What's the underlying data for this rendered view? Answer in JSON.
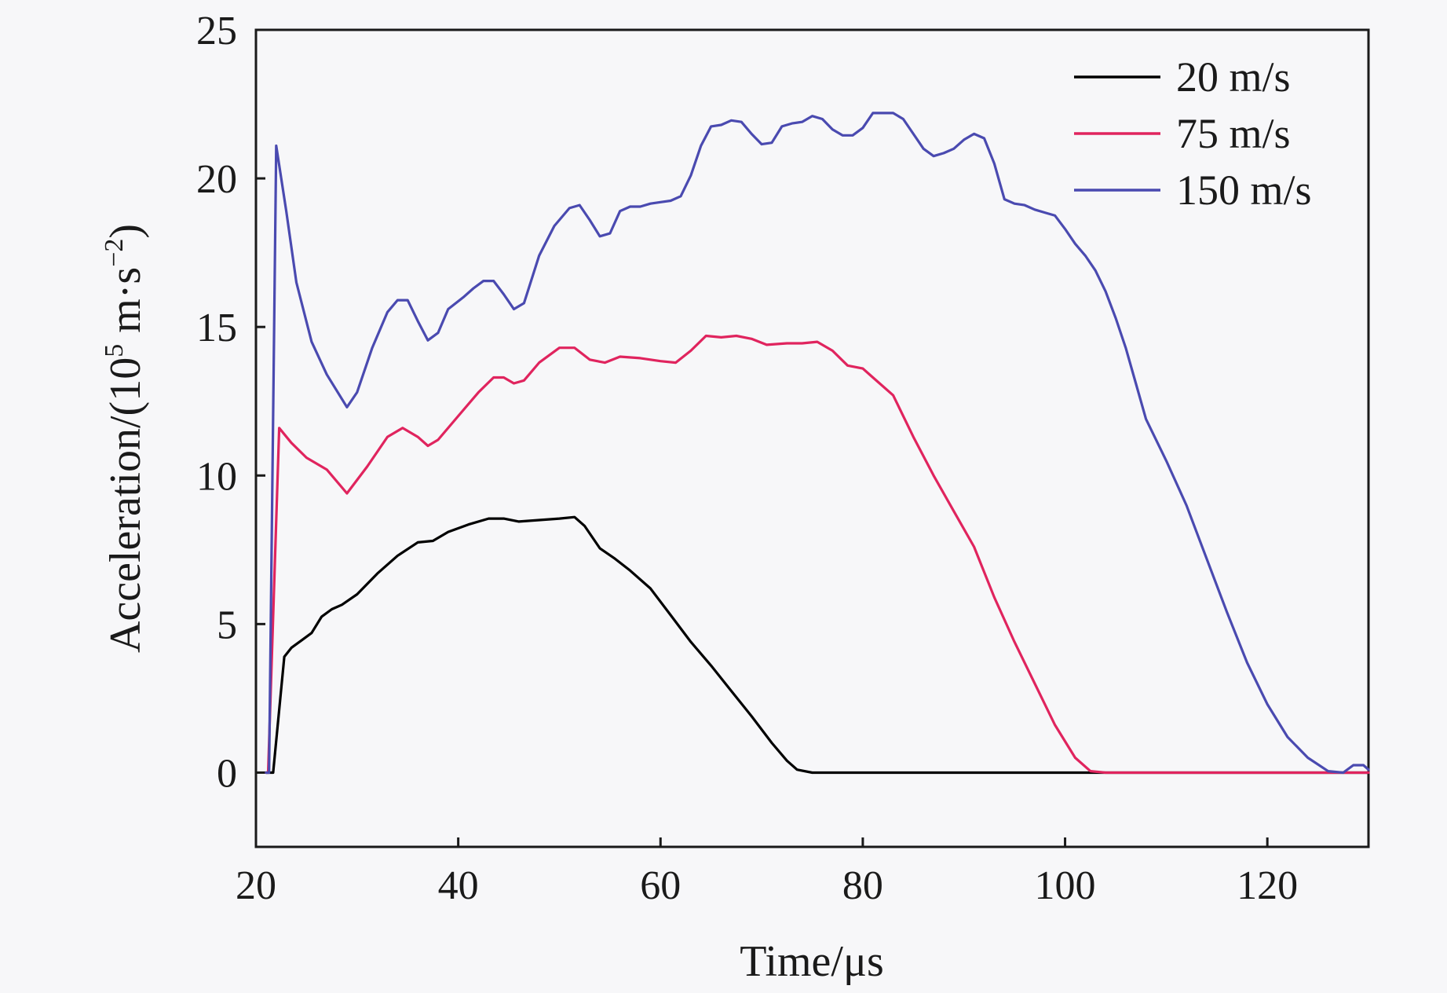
{
  "chart_data": {
    "type": "line",
    "xlabel": "Time/μs",
    "ylabel_prefix": "Acceleration/(10",
    "ylabel_exp1": "5",
    "ylabel_mid": " m·s",
    "ylabel_exp2": "−2",
    "ylabel_suffix": ")",
    "xlim": [
      20,
      130
    ],
    "ylim": [
      -2.5,
      25
    ],
    "xticks": [
      20,
      40,
      60,
      80,
      100,
      120
    ],
    "yticks": [
      0,
      5,
      10,
      15,
      20,
      25
    ],
    "legend_position": "top-right",
    "grid": false,
    "series": [
      {
        "name": "20 m/s",
        "color": "#000000",
        "points": [
          [
            21,
            0
          ],
          [
            21.7,
            0
          ],
          [
            22.8,
            3.9
          ],
          [
            23.5,
            4.2
          ],
          [
            24.5,
            4.45
          ],
          [
            25.5,
            4.7
          ],
          [
            26.5,
            5.25
          ],
          [
            27.5,
            5.5
          ],
          [
            28.5,
            5.65
          ],
          [
            30,
            6.0
          ],
          [
            32,
            6.7
          ],
          [
            34,
            7.3
          ],
          [
            36,
            7.75
          ],
          [
            37.5,
            7.8
          ],
          [
            39,
            8.1
          ],
          [
            41,
            8.35
          ],
          [
            43,
            8.55
          ],
          [
            44.5,
            8.55
          ],
          [
            46,
            8.45
          ],
          [
            48,
            8.5
          ],
          [
            50,
            8.55
          ],
          [
            51.5,
            8.6
          ],
          [
            52.5,
            8.3
          ],
          [
            54,
            7.55
          ],
          [
            55.5,
            7.2
          ],
          [
            57,
            6.8
          ],
          [
            59,
            6.2
          ],
          [
            61,
            5.3
          ],
          [
            63,
            4.4
          ],
          [
            65,
            3.6
          ],
          [
            67,
            2.75
          ],
          [
            69,
            1.9
          ],
          [
            71,
            1.0
          ],
          [
            72.5,
            0.4
          ],
          [
            73.5,
            0.1
          ],
          [
            75,
            0
          ],
          [
            130,
            0
          ]
        ]
      },
      {
        "name": "75 m/s",
        "color": "#e0245e",
        "points": [
          [
            21,
            0
          ],
          [
            21.2,
            0
          ],
          [
            22.3,
            11.6
          ],
          [
            23.5,
            11.1
          ],
          [
            25,
            10.6
          ],
          [
            27,
            10.2
          ],
          [
            29,
            9.4
          ],
          [
            31,
            10.3
          ],
          [
            33,
            11.3
          ],
          [
            34.5,
            11.6
          ],
          [
            36,
            11.3
          ],
          [
            37,
            11.0
          ],
          [
            38,
            11.2
          ],
          [
            40,
            12.0
          ],
          [
            42,
            12.8
          ],
          [
            43.5,
            13.3
          ],
          [
            44.5,
            13.3
          ],
          [
            45.5,
            13.1
          ],
          [
            46.5,
            13.2
          ],
          [
            48,
            13.8
          ],
          [
            50,
            14.3
          ],
          [
            51.5,
            14.3
          ],
          [
            53,
            13.9
          ],
          [
            54.5,
            13.8
          ],
          [
            56,
            14.0
          ],
          [
            58,
            13.95
          ],
          [
            60,
            13.85
          ],
          [
            61.5,
            13.8
          ],
          [
            63,
            14.2
          ],
          [
            64.5,
            14.7
          ],
          [
            66,
            14.65
          ],
          [
            67.5,
            14.7
          ],
          [
            69,
            14.6
          ],
          [
            70.5,
            14.4
          ],
          [
            72.5,
            14.45
          ],
          [
            74,
            14.45
          ],
          [
            75.5,
            14.5
          ],
          [
            77,
            14.2
          ],
          [
            78.5,
            13.7
          ],
          [
            80,
            13.6
          ],
          [
            81,
            13.3
          ],
          [
            83,
            12.7
          ],
          [
            85,
            11.3
          ],
          [
            87,
            10.0
          ],
          [
            89,
            8.8
          ],
          [
            91,
            7.6
          ],
          [
            93,
            5.9
          ],
          [
            95,
            4.4
          ],
          [
            97,
            3.0
          ],
          [
            99,
            1.6
          ],
          [
            101,
            0.5
          ],
          [
            102.5,
            0.05
          ],
          [
            104,
            0
          ],
          [
            130,
            0
          ]
        ]
      },
      {
        "name": "150 m/s",
        "color": "#4a4ab0",
        "points": [
          [
            21,
            0
          ],
          [
            21.3,
            0
          ],
          [
            22,
            21.1
          ],
          [
            23,
            18.9
          ],
          [
            24,
            16.5
          ],
          [
            25.5,
            14.5
          ],
          [
            27,
            13.4
          ],
          [
            29,
            12.3
          ],
          [
            30,
            12.8
          ],
          [
            31.5,
            14.3
          ],
          [
            33,
            15.5
          ],
          [
            34,
            15.9
          ],
          [
            35,
            15.9
          ],
          [
            36,
            15.2
          ],
          [
            37,
            14.55
          ],
          [
            38,
            14.8
          ],
          [
            39,
            15.6
          ],
          [
            40.5,
            16.0
          ],
          [
            41.5,
            16.3
          ],
          [
            42.5,
            16.55
          ],
          [
            43.5,
            16.55
          ],
          [
            44.5,
            16.1
          ],
          [
            45.5,
            15.6
          ],
          [
            46.5,
            15.8
          ],
          [
            48,
            17.4
          ],
          [
            49.5,
            18.4
          ],
          [
            51,
            19.0
          ],
          [
            52,
            19.1
          ],
          [
            53,
            18.6
          ],
          [
            54,
            18.05
          ],
          [
            55,
            18.15
          ],
          [
            56,
            18.9
          ],
          [
            57,
            19.05
          ],
          [
            58,
            19.05
          ],
          [
            59,
            19.15
          ],
          [
            60,
            19.2
          ],
          [
            61,
            19.25
          ],
          [
            62,
            19.4
          ],
          [
            63,
            20.1
          ],
          [
            64,
            21.1
          ],
          [
            65,
            21.75
          ],
          [
            66,
            21.8
          ],
          [
            67,
            21.95
          ],
          [
            68,
            21.9
          ],
          [
            69,
            21.5
          ],
          [
            70,
            21.15
          ],
          [
            71,
            21.2
          ],
          [
            72,
            21.75
          ],
          [
            73,
            21.85
          ],
          [
            74,
            21.9
          ],
          [
            75,
            22.1
          ],
          [
            76,
            22.0
          ],
          [
            77,
            21.65
          ],
          [
            78,
            21.45
          ],
          [
            79,
            21.45
          ],
          [
            80,
            21.7
          ],
          [
            81,
            22.2
          ],
          [
            82,
            22.2
          ],
          [
            83,
            22.2
          ],
          [
            84,
            22.0
          ],
          [
            85,
            21.5
          ],
          [
            86,
            21.0
          ],
          [
            87,
            20.75
          ],
          [
            88,
            20.85
          ],
          [
            89,
            21.0
          ],
          [
            90,
            21.3
          ],
          [
            91,
            21.5
          ],
          [
            92,
            21.35
          ],
          [
            93,
            20.5
          ],
          [
            94,
            19.3
          ],
          [
            95,
            19.15
          ],
          [
            96,
            19.1
          ],
          [
            97,
            18.95
          ],
          [
            98,
            18.85
          ],
          [
            99,
            18.75
          ],
          [
            100,
            18.3
          ],
          [
            101,
            17.8
          ],
          [
            102,
            17.4
          ],
          [
            103,
            16.9
          ],
          [
            104,
            16.2
          ],
          [
            105,
            15.3
          ],
          [
            106,
            14.3
          ],
          [
            107,
            13.1
          ],
          [
            108,
            11.9
          ],
          [
            110,
            10.5
          ],
          [
            112,
            9.0
          ],
          [
            114,
            7.2
          ],
          [
            116,
            5.4
          ],
          [
            118,
            3.7
          ],
          [
            120,
            2.3
          ],
          [
            122,
            1.2
          ],
          [
            124,
            0.5
          ],
          [
            126,
            0.05
          ],
          [
            127.5,
            0
          ],
          [
            128.5,
            0.25
          ],
          [
            129.5,
            0.25
          ],
          [
            130,
            0.1
          ]
        ]
      }
    ]
  }
}
